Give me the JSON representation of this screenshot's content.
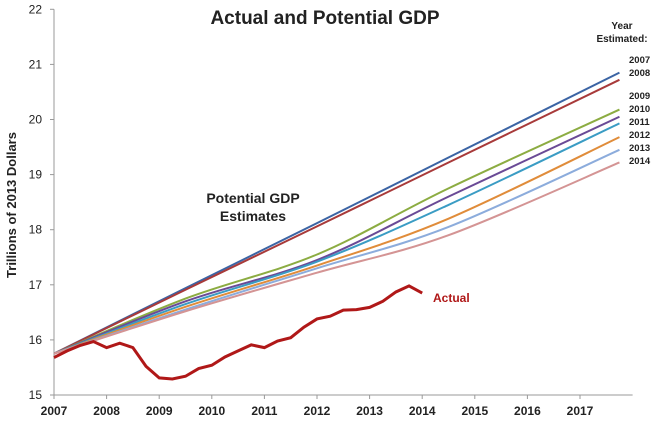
{
  "chart_data": {
    "type": "line",
    "title": "Actual and Potential GDP",
    "ylabel": "Trillions of 2013 Dollars",
    "xlabel": "",
    "xlim": [
      2007,
      2018
    ],
    "ylim": [
      15,
      22
    ],
    "xticks": [
      "2007",
      "2008",
      "2009",
      "2010",
      "2011",
      "2012",
      "2013",
      "2014",
      "2015",
      "2016",
      "2017"
    ],
    "yticks": [
      "15",
      "16",
      "17",
      "18",
      "19",
      "20",
      "21",
      "22"
    ],
    "grid": false,
    "legend_title": "Year Estimated:",
    "annotation_potential": "Potential GDP Estimates",
    "series": [
      {
        "name": "2007",
        "color": "#3b64a4",
        "x": [
          2007,
          2009.5,
          2012,
          2014.5,
          2017.75
        ],
        "y": [
          15.75,
          16.94,
          18.12,
          19.31,
          20.85
        ]
      },
      {
        "name": "2008",
        "color": "#a83a3a",
        "x": [
          2007,
          2009.5,
          2012,
          2014.5,
          2017.75
        ],
        "y": [
          15.75,
          16.91,
          18.06,
          19.22,
          20.72
        ]
      },
      {
        "name": "2009",
        "color": "#8cac42",
        "x": [
          2007,
          2009.5,
          2012,
          2014.5,
          2017.75
        ],
        "y": [
          15.75,
          16.75,
          17.55,
          18.75,
          20.18
        ]
      },
      {
        "name": "2010",
        "color": "#6a4a96",
        "x": [
          2007,
          2009.5,
          2012,
          2014.5,
          2017.75
        ],
        "y": [
          15.75,
          16.7,
          17.45,
          18.6,
          20.05
        ]
      },
      {
        "name": "2011",
        "color": "#3a9cc4",
        "x": [
          2007,
          2009.5,
          2012,
          2014.5,
          2017.75
        ],
        "y": [
          15.75,
          16.65,
          17.42,
          18.45,
          19.93
        ]
      },
      {
        "name": "2012",
        "color": "#e08c3a",
        "x": [
          2007,
          2009.5,
          2012,
          2014.5,
          2017.75
        ],
        "y": [
          15.75,
          16.6,
          17.35,
          18.2,
          19.68
        ]
      },
      {
        "name": "2013",
        "color": "#8cacdc",
        "x": [
          2007,
          2009.5,
          2012,
          2014.5,
          2017.75
        ],
        "y": [
          15.75,
          16.55,
          17.3,
          18.05,
          19.45
        ]
      },
      {
        "name": "2014",
        "color": "#d49494",
        "x": [
          2007,
          2009.5,
          2012,
          2014.5,
          2017.75
        ],
        "y": [
          15.75,
          16.52,
          17.22,
          17.9,
          19.22
        ]
      },
      {
        "name": "Actual",
        "color": "#b01818",
        "x": [
          2007,
          2007.25,
          2007.5,
          2007.75,
          2008,
          2008.25,
          2008.5,
          2008.75,
          2009,
          2009.25,
          2009.5,
          2009.75,
          2010,
          2010.25,
          2010.5,
          2010.75,
          2011,
          2011.25,
          2011.5,
          2011.75,
          2012,
          2012.25,
          2012.5,
          2012.75,
          2013,
          2013.25,
          2013.5,
          2013.75,
          2014
        ],
        "y": [
          15.68,
          15.8,
          15.9,
          15.97,
          15.86,
          15.94,
          15.86,
          15.52,
          15.31,
          15.29,
          15.34,
          15.48,
          15.54,
          15.69,
          15.8,
          15.91,
          15.86,
          15.98,
          16.04,
          16.23,
          16.38,
          16.43,
          16.54,
          16.55,
          16.59,
          16.7,
          16.87,
          16.98,
          16.85
        ]
      }
    ]
  }
}
